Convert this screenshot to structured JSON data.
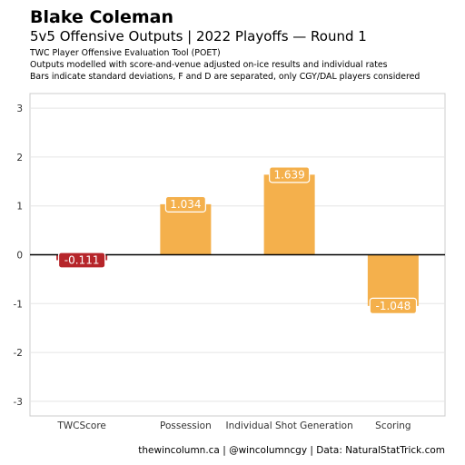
{
  "header": {
    "title": "Blake Coleman",
    "subtitle": "5v5 Offensive Outputs | 2022 Playoffs — Round 1",
    "desc": [
      "TWC Player Offensive Evaluation Tool (POET)",
      "Outputs modelled with score-and-venue adjusted on-ice results and individual rates",
      "Bars indicate standard deviations, F and D are separated, only CGY/DAL players considered"
    ]
  },
  "caption": "thewincolumn.ca | @wincolumncgy | Data: NaturalStatTrick.com",
  "chart_data": {
    "type": "bar",
    "categories": [
      "TWCScore",
      "Possession",
      "Individual Shot Generation",
      "Scoring"
    ],
    "values": [
      -0.111,
      1.034,
      1.639,
      -1.048
    ],
    "labels": [
      "-0.111",
      "1.034",
      "1.639",
      "-1.048"
    ],
    "ylim": [
      -3.3,
      3.3
    ],
    "yticks": [
      -3,
      -2,
      -1,
      0,
      1,
      2,
      3
    ],
    "grid": true,
    "colors": {
      "positive": "#f4b04c",
      "negative_twcscore": "#b6252a",
      "negative": "#f4b04c",
      "grid": "#e5e5e5",
      "zero_line": "#000000"
    },
    "bar_colors": [
      "#b6252a",
      "#f4b04c",
      "#f4b04c",
      "#f4b04c"
    ]
  }
}
